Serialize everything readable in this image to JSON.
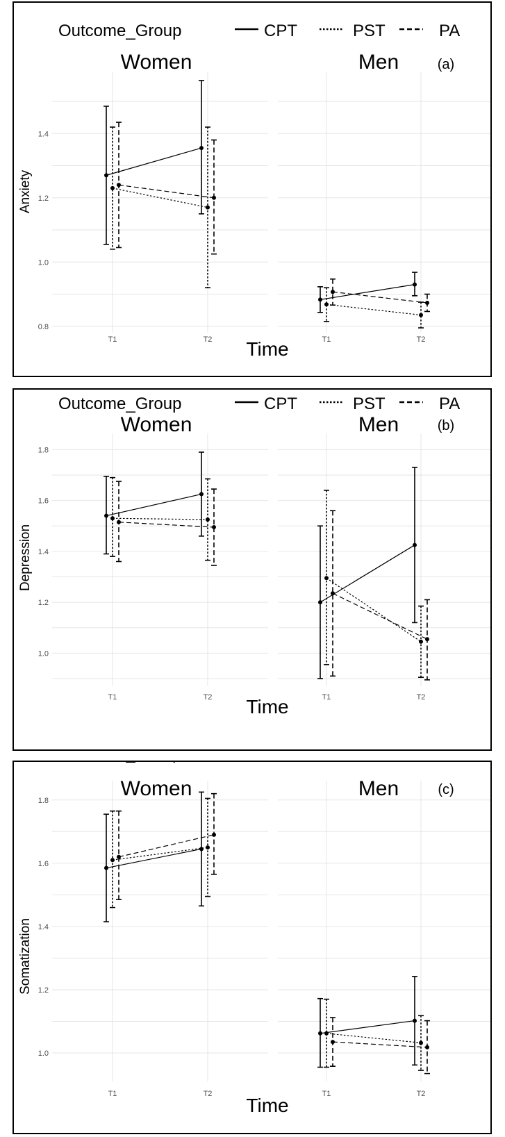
{
  "chart_data": [
    {
      "type": "line",
      "panel_label": "(a)",
      "ylabel": "Anxiety",
      "xlabel": "Time",
      "ylim": [
        0.78,
        1.58
      ],
      "yticks": [
        0.8,
        1.0,
        1.2,
        1.4
      ],
      "ytick_labels": [
        "0.8",
        "1.0",
        "1.2",
        "1.4"
      ],
      "categories": [
        "T1",
        "T2"
      ],
      "legend": {
        "title": "Outcome_Group",
        "entries": [
          "CPT",
          "PST",
          "PA"
        ],
        "styles": [
          "solid",
          "dotted",
          "dashed"
        ]
      },
      "facets": [
        {
          "title": "Women",
          "series": [
            {
              "name": "CPT",
              "values": [
                1.27,
                1.355
              ],
              "lower": [
                1.055,
                1.15
              ],
              "upper": [
                1.485,
                1.565
              ]
            },
            {
              "name": "PST",
              "values": [
                1.23,
                1.17
              ],
              "lower": [
                1.04,
                0.92
              ],
              "upper": [
                1.42,
                1.42
              ]
            },
            {
              "name": "PA",
              "values": [
                1.24,
                1.2
              ],
              "lower": [
                1.045,
                1.025
              ],
              "upper": [
                1.435,
                1.38
              ]
            }
          ]
        },
        {
          "title": "Men",
          "series": [
            {
              "name": "CPT",
              "values": [
                0.883,
                0.93
              ],
              "lower": [
                0.843,
                0.895
              ],
              "upper": [
                0.923,
                0.968
              ]
            },
            {
              "name": "PST",
              "values": [
                0.868,
                0.835
              ],
              "lower": [
                0.815,
                0.795
              ],
              "upper": [
                0.92,
                0.875
              ]
            },
            {
              "name": "PA",
              "values": [
                0.907,
                0.873
              ],
              "lower": [
                0.866,
                0.846
              ],
              "upper": [
                0.947,
                0.9
              ]
            }
          ]
        }
      ]
    },
    {
      "type": "line",
      "panel_label": "(b)",
      "ylabel": "Depression",
      "xlabel": "Time",
      "ylim": [
        0.87,
        1.85
      ],
      "yticks": [
        1.0,
        1.2,
        1.4,
        1.6,
        1.8
      ],
      "ytick_labels": [
        "1.0",
        "1.2",
        "1.4",
        "1.6",
        "1.8"
      ],
      "categories": [
        "T1",
        "T2"
      ],
      "legend": {
        "title": "Outcome_Group",
        "entries": [
          "CPT",
          "PST",
          "PA"
        ],
        "styles": [
          "solid",
          "dotted",
          "dashed"
        ]
      },
      "facets": [
        {
          "title": "Women",
          "series": [
            {
              "name": "CPT",
              "values": [
                1.54,
                1.625
              ],
              "lower": [
                1.39,
                1.46
              ],
              "upper": [
                1.695,
                1.79
              ]
            },
            {
              "name": "PST",
              "values": [
                1.53,
                1.525
              ],
              "lower": [
                1.38,
                1.365
              ],
              "upper": [
                1.69,
                1.685
              ]
            },
            {
              "name": "PA",
              "values": [
                1.515,
                1.495
              ],
              "lower": [
                1.36,
                1.345
              ],
              "upper": [
                1.675,
                1.645
              ]
            }
          ]
        },
        {
          "title": "Men",
          "series": [
            {
              "name": "CPT",
              "values": [
                1.2,
                1.425
              ],
              "lower": [
                0.9,
                1.12
              ],
              "upper": [
                1.5,
                1.73
              ]
            },
            {
              "name": "PST",
              "values": [
                1.295,
                1.045
              ],
              "lower": [
                0.955,
                0.905
              ],
              "upper": [
                1.64,
                1.185
              ]
            },
            {
              "name": "PA",
              "values": [
                1.235,
                1.055
              ],
              "lower": [
                0.91,
                0.895
              ],
              "upper": [
                1.56,
                1.21
              ]
            }
          ]
        }
      ]
    },
    {
      "type": "line",
      "panel_label": "(c)",
      "ylabel": "Somatization",
      "xlabel": "Time",
      "ylim": [
        0.91,
        1.85
      ],
      "yticks": [
        1.0,
        1.2,
        1.4,
        1.6,
        1.8
      ],
      "ytick_labels": [
        "1.0",
        "1.2",
        "1.4",
        "1.6",
        "1.8"
      ],
      "categories": [
        "T1",
        "T2"
      ],
      "legend": {
        "title": "Outcome_Group",
        "entries": [
          "CPT",
          "PST",
          "PA"
        ],
        "styles": [
          "solid",
          "dotted",
          "dashed"
        ]
      },
      "facets": [
        {
          "title": "Women",
          "series": [
            {
              "name": "CPT",
              "values": [
                1.585,
                1.645
              ],
              "lower": [
                1.415,
                1.465
              ],
              "upper": [
                1.755,
                1.825
              ]
            },
            {
              "name": "PST",
              "values": [
                1.61,
                1.65
              ],
              "lower": [
                1.46,
                1.495
              ],
              "upper": [
                1.765,
                1.805
              ]
            },
            {
              "name": "PA",
              "values": [
                1.62,
                1.69
              ],
              "lower": [
                1.485,
                1.565
              ],
              "upper": [
                1.765,
                1.82
              ]
            }
          ]
        },
        {
          "title": "Men",
          "series": [
            {
              "name": "CPT",
              "values": [
                1.062,
                1.102
              ],
              "lower": [
                0.955,
                0.962
              ],
              "upper": [
                1.172,
                1.242
              ]
            },
            {
              "name": "PST",
              "values": [
                1.062,
                1.032
              ],
              "lower": [
                0.955,
                0.945
              ],
              "upper": [
                1.17,
                1.118
              ]
            },
            {
              "name": "PA",
              "values": [
                1.035,
                1.018
              ],
              "lower": [
                0.958,
                0.935
              ],
              "upper": [
                1.112,
                1.102
              ]
            }
          ]
        }
      ]
    }
  ]
}
